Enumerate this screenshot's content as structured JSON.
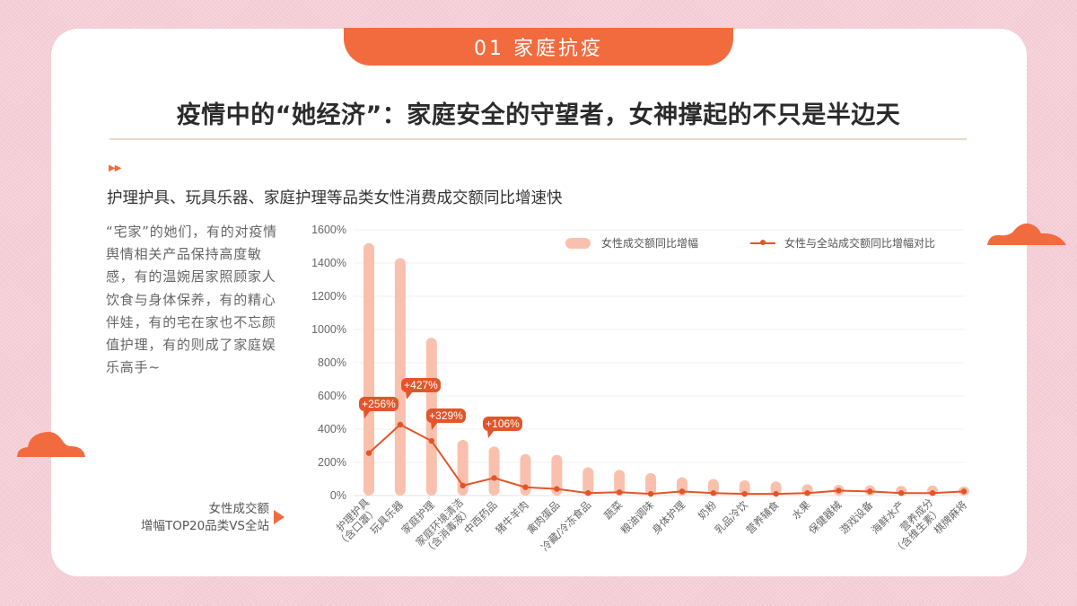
{
  "section_tab": "01 家庭抗疫",
  "title": "疫情中的“她经济”：家庭安全的守望者，女神撑起的不只是半边天",
  "subtitle_marker": "▶▶",
  "subtitle": "护理护具、玩具乐器、家庭护理等品类女性消费成交额同比增速快",
  "description": "“宅家”的她们，有的对疫情舆情相关产品保持高度敏感，有的温婉居家照顾家人饮食与身体保养，有的精心伴娃，有的宅在家也不忘颜值护理，有的则成了家庭娱乐高手~",
  "chart_caption": {
    "line1": "女性成交额",
    "line2": "增幅TOP20品类VS全站"
  },
  "colors": {
    "accent": "#f26b3f",
    "bar": "#f9c1ad",
    "line": "#e2552a",
    "background": "#f3c9d3"
  },
  "chart_data": {
    "type": "bar+line",
    "title": "女性成交额增幅TOP20品类VS全站",
    "xlabel": "",
    "ylabel": "",
    "ylim": [
      0,
      1600
    ],
    "yticks": [
      "0%",
      "200%",
      "400%",
      "600%",
      "800%",
      "1000%",
      "1200%",
      "1400%",
      "1600%"
    ],
    "grid": true,
    "legend_position": "top-right",
    "categories": [
      "护理护具（含口罩）",
      "玩具乐器",
      "家庭护理",
      "家庭环境清洁（含消毒液）",
      "中西药品",
      "猪牛羊肉",
      "禽肉蛋品",
      "冷藏/冷冻食品",
      "蔬菜",
      "粮油调味",
      "身体护理",
      "奶粉",
      "乳品冷饮",
      "营养辅食",
      "水果",
      "保健器械",
      "游戏设备",
      "海鲜水产",
      "营养成分（含维生素）",
      "棋牌麻将"
    ],
    "series": [
      {
        "name": "女性成交额同比增幅",
        "type": "bar",
        "values": [
          1520,
          1430,
          950,
          335,
          295,
          250,
          245,
          170,
          155,
          135,
          110,
          100,
          92,
          85,
          68,
          65,
          62,
          58,
          60,
          55
        ]
      },
      {
        "name": "女性与全站成交额同比增幅对比",
        "type": "line",
        "values": [
          256,
          427,
          329,
          60,
          106,
          50,
          40,
          15,
          20,
          10,
          25,
          15,
          10,
          10,
          15,
          30,
          25,
          15,
          15,
          25
        ]
      }
    ],
    "annotations": [
      {
        "category": "护理护具（含口罩）",
        "label": "+256%"
      },
      {
        "category": "玩具乐器",
        "label": "+427%"
      },
      {
        "category": "家庭护理",
        "label": "+329%"
      },
      {
        "category": "中西药品",
        "label": "+106%"
      }
    ]
  }
}
